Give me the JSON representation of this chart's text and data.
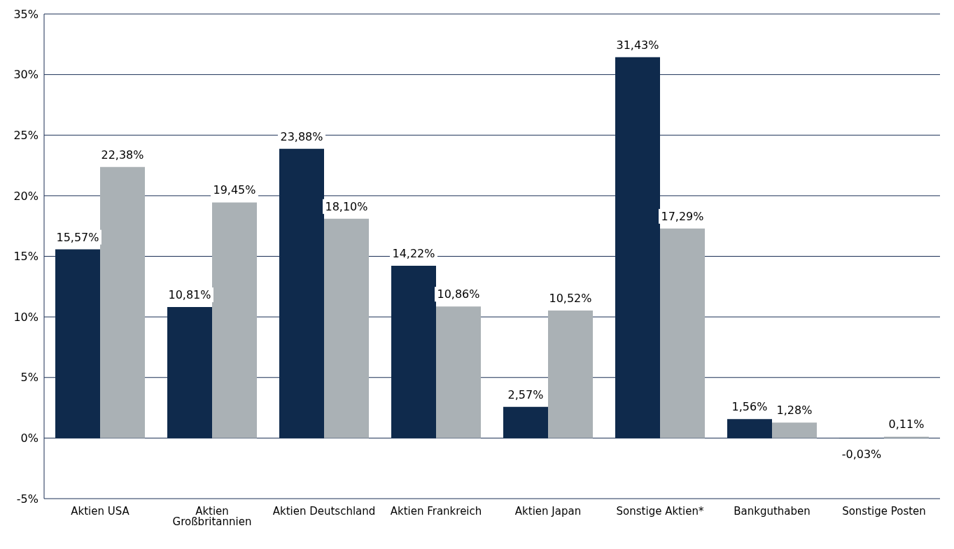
{
  "chart_data": {
    "type": "bar",
    "categories": [
      "Aktien USA",
      "Aktien Großbritannien",
      "Aktien Deutschland",
      "Aktien Frankreich",
      "Aktien Japan",
      "Sonstige Aktien*",
      "Bankguthaben",
      "Sonstige Posten"
    ],
    "series": [
      {
        "color": "#0f2a4c",
        "values": [
          15.57,
          10.81,
          23.88,
          14.22,
          2.57,
          31.43,
          1.56,
          -0.03
        ],
        "value_labels": [
          "15,57%",
          "10,81%",
          "23,88%",
          "14,22%",
          "2,57%",
          "31,43%",
          "1,56%",
          "-0,03%"
        ]
      },
      {
        "color": "#aab1b5",
        "values": [
          22.38,
          19.45,
          18.1,
          10.86,
          10.52,
          17.29,
          1.28,
          0.11
        ],
        "value_labels": [
          "22,38%",
          "19,45%",
          "18,10%",
          "10,86%",
          "10,52%",
          "17,29%",
          "1,28%",
          "0,11%"
        ]
      }
    ],
    "ylim": [
      -5,
      35
    ],
    "yticks": [
      {
        "value": -5,
        "label": "-5%"
      },
      {
        "value": 0,
        "label": "0%"
      },
      {
        "value": 5,
        "label": "5%"
      },
      {
        "value": 10,
        "label": "10%"
      },
      {
        "value": 15,
        "label": "15%"
      },
      {
        "value": 20,
        "label": "20%"
      },
      {
        "value": 25,
        "label": "25%"
      },
      {
        "value": 30,
        "label": "30%"
      },
      {
        "value": 35,
        "label": "35%"
      }
    ],
    "grid": "y"
  }
}
